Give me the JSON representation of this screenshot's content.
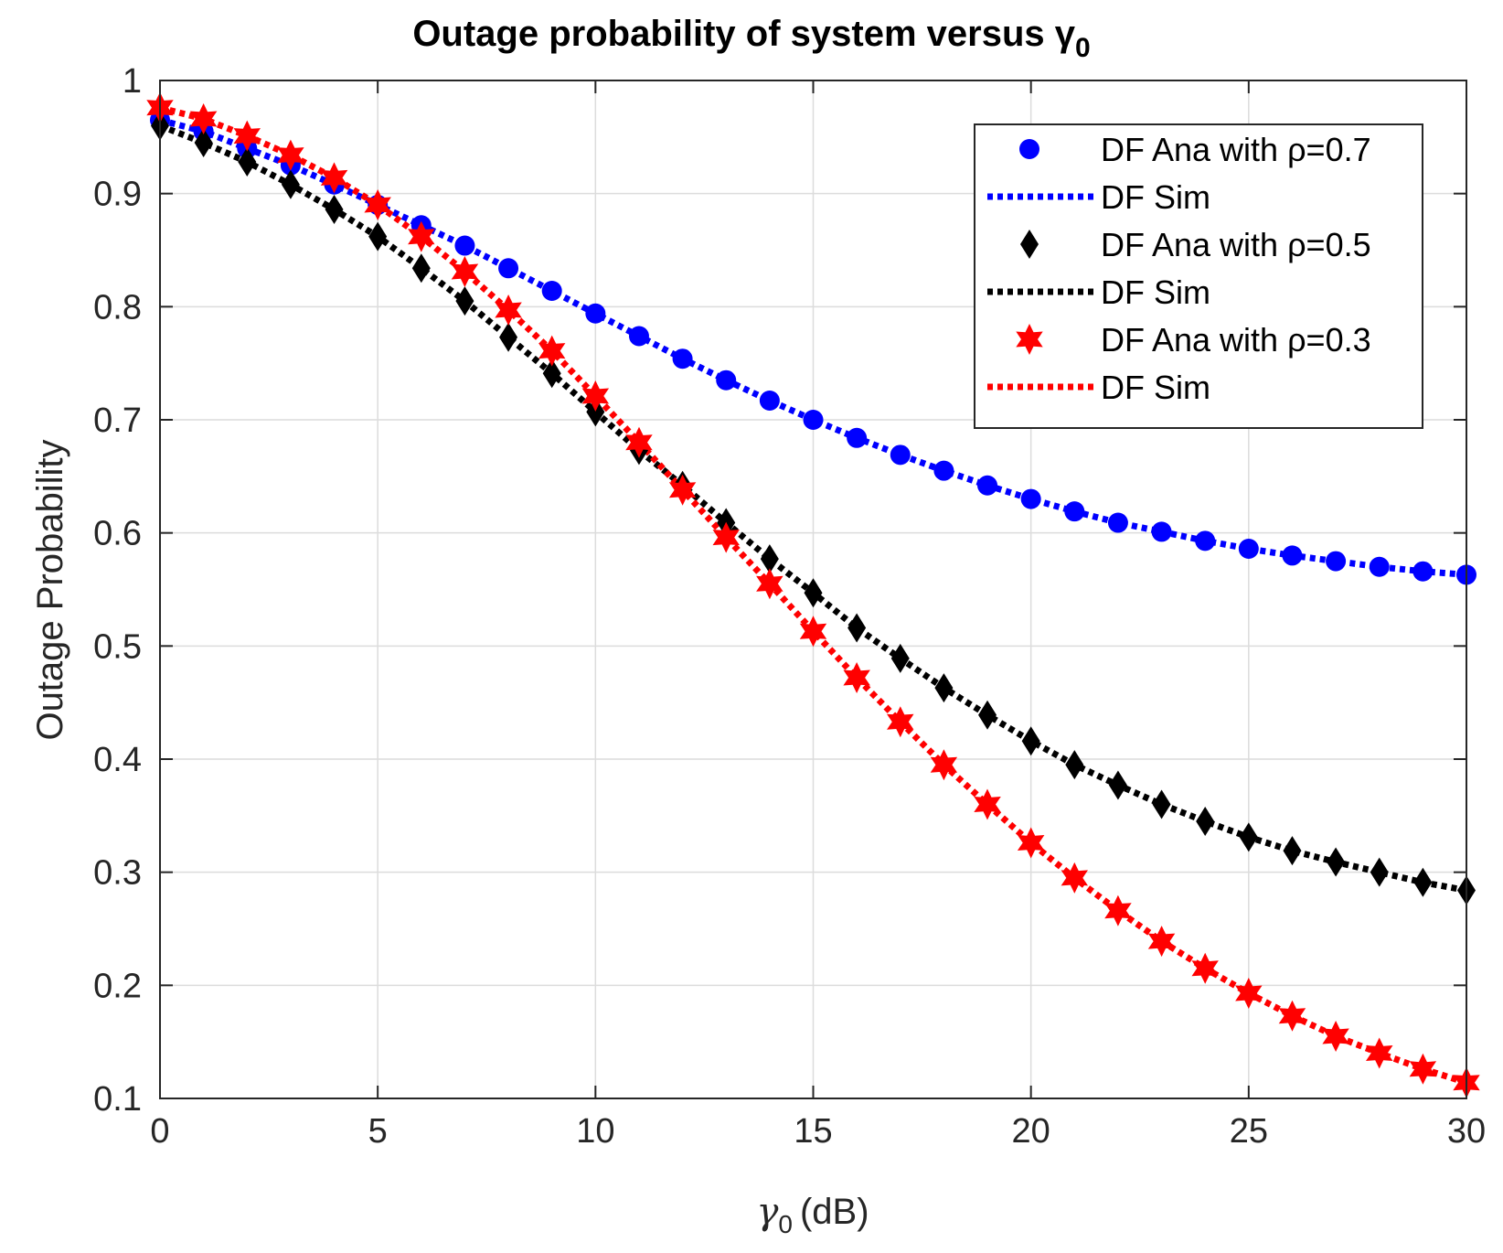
{
  "chart_data": {
    "type": "line",
    "title": "Outage probability of system versus γ",
    "title_subscript": "0",
    "xlabel_symbol": "γ",
    "xlabel_subscript": "0",
    "xlabel_unit": "(dB)",
    "ylabel": "Outage Probability",
    "xlim": [
      0,
      30
    ],
    "ylim": [
      0.1,
      1
    ],
    "grid": true,
    "legend_position": "top-right",
    "x_ticks": [
      0,
      5,
      10,
      15,
      20,
      25,
      30
    ],
    "x_tick_labels": [
      "0",
      "5",
      "10",
      "15",
      "20",
      "25",
      "30"
    ],
    "y_ticks": [
      0.1,
      0.2,
      0.3,
      0.4,
      0.5,
      0.6,
      0.7,
      0.8,
      0.9,
      1
    ],
    "y_tick_labels": [
      "0.1",
      "0.2",
      "0.3",
      "0.4",
      "0.5",
      "0.6",
      "0.7",
      "0.8",
      "0.9",
      "1"
    ],
    "x": [
      0,
      1,
      2,
      3,
      4,
      5,
      6,
      7,
      8,
      9,
      10,
      11,
      12,
      13,
      14,
      15,
      16,
      17,
      18,
      19,
      20,
      21,
      22,
      23,
      24,
      25,
      26,
      27,
      28,
      29,
      30
    ],
    "series": [
      {
        "name": "DF Ana with ρ=0.7",
        "sim_name": "DF Sim",
        "color": "#0000ff",
        "marker": "circle",
        "values": [
          0.965,
          0.955,
          0.94,
          0.925,
          0.908,
          0.89,
          0.872,
          0.854,
          0.834,
          0.814,
          0.794,
          0.774,
          0.754,
          0.735,
          0.717,
          0.7,
          0.684,
          0.669,
          0.655,
          0.642,
          0.63,
          0.619,
          0.609,
          0.601,
          0.593,
          0.586,
          0.58,
          0.575,
          0.57,
          0.566,
          0.563
        ]
      },
      {
        "name": "DF Ana with ρ=0.5",
        "sim_name": "DF Sim",
        "color": "#000000",
        "marker": "diamond",
        "values": [
          0.96,
          0.945,
          0.928,
          0.908,
          0.886,
          0.862,
          0.834,
          0.805,
          0.773,
          0.741,
          0.707,
          0.673,
          0.642,
          0.609,
          0.577,
          0.547,
          0.516,
          0.489,
          0.463,
          0.439,
          0.416,
          0.395,
          0.377,
          0.36,
          0.345,
          0.331,
          0.319,
          0.309,
          0.3,
          0.291,
          0.284
        ]
      },
      {
        "name": "DF Ana with ρ=0.3",
        "sim_name": "DF Sim",
        "color": "#ff0000",
        "marker": "star",
        "values": [
          0.976,
          0.966,
          0.951,
          0.934,
          0.914,
          0.89,
          0.862,
          0.831,
          0.797,
          0.761,
          0.721,
          0.68,
          0.638,
          0.596,
          0.555,
          0.513,
          0.472,
          0.433,
          0.395,
          0.36,
          0.326,
          0.295,
          0.266,
          0.239,
          0.215,
          0.193,
          0.173,
          0.155,
          0.14,
          0.126,
          0.114
        ]
      }
    ]
  }
}
